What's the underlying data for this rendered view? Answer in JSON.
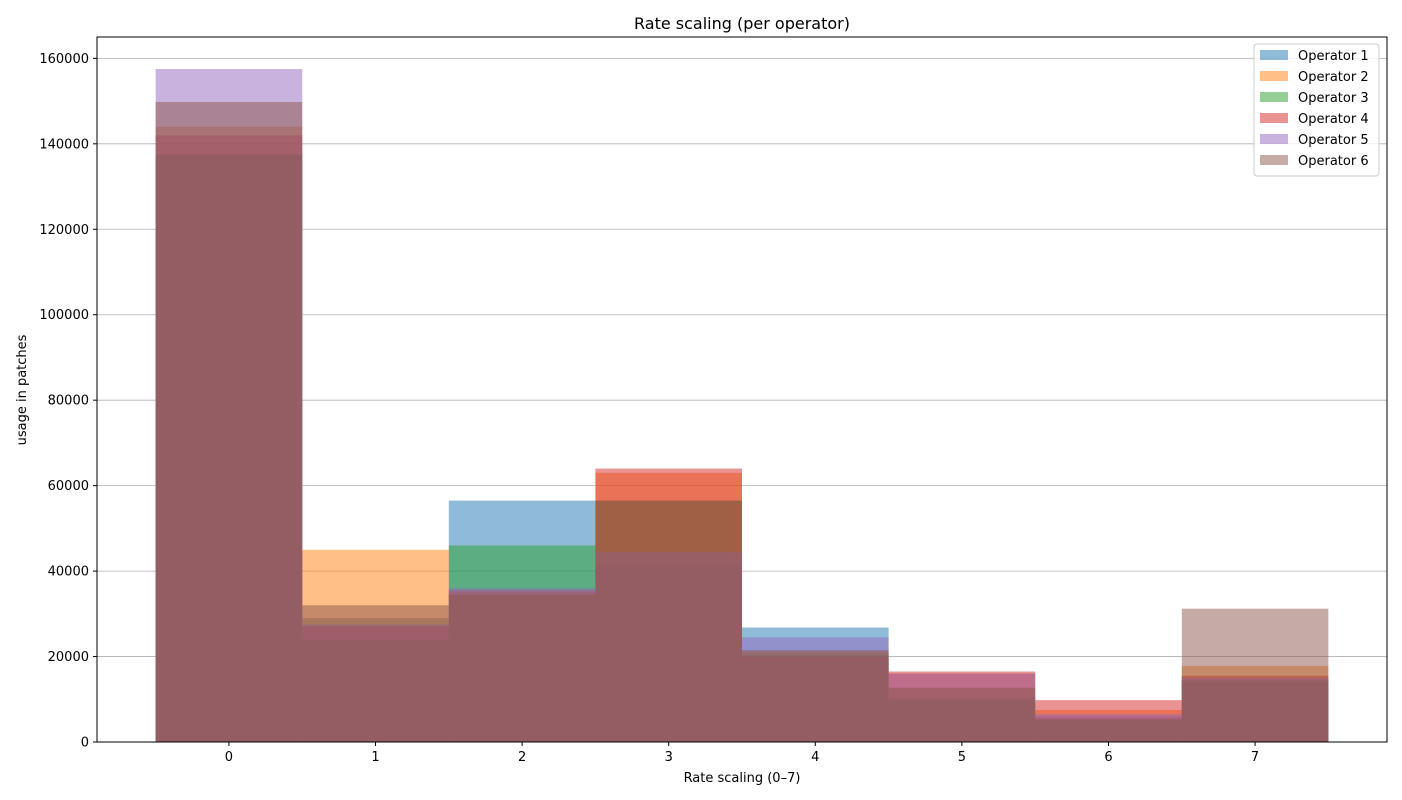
{
  "chart_data": {
    "type": "bar",
    "title": "Rate scaling (per operator)",
    "xlabel": "Rate scaling (0–7)",
    "ylabel": "usage in patches",
    "categories": [
      "0",
      "1",
      "2",
      "3",
      "4",
      "5",
      "6",
      "7"
    ],
    "ylim": [
      0,
      165000
    ],
    "yticks": [
      0,
      20000,
      40000,
      60000,
      80000,
      100000,
      120000,
      140000,
      160000
    ],
    "ytick_labels": [
      "0",
      "20000",
      "40000",
      "60000",
      "80000",
      "100000",
      "120000",
      "140000",
      "160000"
    ],
    "grid": "y",
    "legend_position": "top-right",
    "overlay": true,
    "series": [
      {
        "name": "Operator 1",
        "color": "#1f77b4",
        "values": [
          137500,
          29000,
          56500,
          41500,
          26800,
          10500,
          6000,
          13800
        ]
      },
      {
        "name": "Operator 2",
        "color": "#ff7f0e",
        "values": [
          144000,
          45000,
          35000,
          63000,
          21000,
          16000,
          7500,
          17800
        ]
      },
      {
        "name": "Operator 3",
        "color": "#2ca02c",
        "values": [
          137500,
          24000,
          46000,
          56500,
          20500,
          9800,
          5000,
          14500
        ]
      },
      {
        "name": "Operator 4",
        "color": "#d62728",
        "values": [
          142000,
          27000,
          35500,
          64000,
          20000,
          16500,
          9800,
          15500
        ]
      },
      {
        "name": "Operator 5",
        "color": "#9467bd",
        "values": [
          157500,
          27500,
          36000,
          44500,
          24500,
          16000,
          6500,
          15000
        ]
      },
      {
        "name": "Operator 6",
        "color": "#8c564b",
        "values": [
          149800,
          32000,
          34500,
          56500,
          21500,
          12700,
          5500,
          31200
        ]
      }
    ]
  }
}
